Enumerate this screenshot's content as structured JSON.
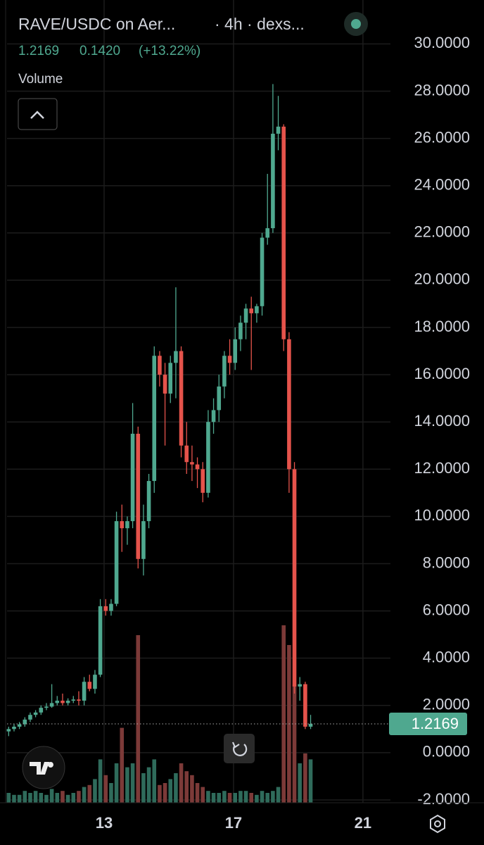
{
  "chart_data": {
    "type": "candlestick",
    "title": "RAVE/USDC on Aer...",
    "subtitle": "· 4h · dexs...",
    "last_price": 1.2169,
    "change": "0.1420",
    "change_pct": "(+13.22%)",
    "volume_label": "Volume",
    "up_color": "#4fa88f",
    "down_color": "#e5534b",
    "up_volume_color": "#2f6b5b",
    "down_volume_color": "#7c3a38",
    "grid": true,
    "xlim": [
      10,
      21.85
    ],
    "xticks": [
      13,
      17,
      21
    ],
    "ylim": [
      -2.12,
      31.86
    ],
    "yticks": [
      {
        "value": 30,
        "label": "30.0000"
      },
      {
        "value": 28,
        "label": "28.0000"
      },
      {
        "value": 26,
        "label": "26.0000"
      },
      {
        "value": 24,
        "label": "24.0000"
      },
      {
        "value": 22,
        "label": "22.0000"
      },
      {
        "value": 20,
        "label": "20.0000"
      },
      {
        "value": 18,
        "label": "18.0000"
      },
      {
        "value": 16,
        "label": "16.0000"
      },
      {
        "value": 14,
        "label": "14.0000"
      },
      {
        "value": 12,
        "label": "12.0000"
      },
      {
        "value": 10,
        "label": "10.0000"
      },
      {
        "value": 8,
        "label": "8.0000"
      },
      {
        "value": 6,
        "label": "6.0000"
      },
      {
        "value": 4,
        "label": "4.0000"
      },
      {
        "value": 2,
        "label": "2.0000"
      },
      {
        "value": 0,
        "label": "0.0000"
      },
      {
        "value": -2,
        "label": "-2.0000"
      }
    ],
    "vlim": [
      0,
      100
    ],
    "x": [
      10.05,
      10.217,
      10.383,
      10.55,
      10.717,
      10.883,
      11.05,
      11.217,
      11.383,
      11.55,
      11.717,
      11.883,
      12.05,
      12.217,
      12.383,
      12.55,
      12.717,
      12.883,
      13.05,
      13.217,
      13.383,
      13.55,
      13.717,
      13.883,
      14.05,
      14.217,
      14.383,
      14.55,
      14.717,
      14.883,
      15.05,
      15.217,
      15.383,
      15.55,
      15.717,
      15.883,
      16.05,
      16.217,
      16.383,
      16.55,
      16.717,
      16.883,
      17.05,
      17.217,
      17.383,
      17.55,
      17.717,
      17.883,
      18.05,
      18.217,
      18.383,
      18.55,
      18.717,
      18.883,
      19.05,
      19.217,
      19.383
    ],
    "open": [
      0.9,
      1.0,
      1.1,
      1.2,
      1.4,
      1.6,
      1.7,
      1.9,
      1.95,
      2.1,
      2.2,
      2.1,
      2.2,
      2.25,
      2.2,
      3.0,
      2.7,
      3.3,
      6.2,
      6.0,
      6.3,
      9.8,
      9.5,
      9.8,
      13.5,
      8.2,
      9.8,
      11.5,
      16.8,
      16.0,
      15.2,
      16.5,
      17.0,
      13.0,
      12.3,
      12.2,
      12.0,
      11.0,
      14.0,
      14.5,
      15.5,
      16.8,
      16.5,
      17.5,
      18.2,
      18.8,
      18.6,
      18.9,
      21.8,
      22.2,
      26.2,
      26.5,
      17.5,
      12.0,
      2.8,
      2.9,
      1.1
    ],
    "high": [
      1.1,
      1.2,
      1.3,
      1.5,
      1.7,
      1.8,
      2.0,
      2.1,
      2.9,
      2.4,
      2.5,
      2.3,
      2.4,
      2.6,
      3.2,
      3.3,
      3.5,
      6.5,
      6.5,
      6.5,
      10.2,
      10.5,
      10.0,
      14.8,
      13.8,
      10.5,
      11.8,
      17.2,
      17.0,
      16.5,
      16.8,
      19.7,
      17.2,
      14.0,
      13.0,
      12.5,
      12.3,
      14.5,
      15.0,
      16.0,
      17.0,
      17.5,
      18.0,
      18.5,
      19.0,
      19.3,
      19.0,
      22.0,
      24.5,
      28.3,
      27.8,
      26.6,
      17.8,
      12.3,
      3.2,
      3.0,
      1.6
    ],
    "low": [
      0.7,
      0.9,
      1.0,
      1.1,
      1.3,
      1.5,
      1.6,
      1.8,
      1.9,
      2.0,
      2.0,
      2.0,
      2.1,
      2.0,
      2.0,
      2.6,
      2.5,
      3.2,
      5.8,
      5.8,
      6.2,
      8.5,
      8.8,
      9.5,
      7.8,
      7.5,
      9.5,
      11.0,
      15.5,
      13.0,
      14.8,
      15.0,
      12.5,
      11.8,
      11.5,
      11.2,
      10.6,
      10.8,
      13.5,
      14.0,
      15.0,
      16.0,
      16.2,
      17.0,
      17.5,
      16.2,
      18.2,
      18.5,
      21.5,
      22.0,
      25.5,
      17.0,
      11.0,
      2.5,
      2.2,
      1.0,
      1.0
    ],
    "close": [
      1.0,
      1.1,
      1.2,
      1.4,
      1.6,
      1.7,
      1.9,
      1.95,
      2.1,
      2.2,
      2.1,
      2.2,
      2.25,
      2.2,
      3.0,
      2.7,
      3.3,
      6.2,
      6.0,
      6.3,
      9.8,
      9.5,
      9.8,
      13.5,
      8.2,
      9.8,
      11.5,
      16.8,
      16.0,
      15.2,
      16.5,
      17.0,
      13.0,
      12.3,
      12.2,
      12.0,
      11.0,
      14.0,
      14.5,
      15.5,
      16.8,
      16.5,
      17.5,
      18.2,
      18.8,
      18.6,
      18.9,
      21.8,
      22.2,
      26.2,
      26.5,
      17.5,
      12.0,
      2.8,
      2.9,
      1.1,
      1.2169
    ],
    "volume": [
      5,
      4,
      4,
      6,
      5,
      6,
      5,
      4,
      7,
      5,
      6,
      4,
      5,
      6,
      8,
      9,
      12,
      22,
      14,
      10,
      20,
      38,
      18,
      20,
      85,
      15,
      18,
      22,
      9,
      10,
      12,
      15,
      20,
      16,
      14,
      10,
      8,
      6,
      5,
      5,
      6,
      5,
      5,
      6,
      6,
      5,
      4,
      6,
      5,
      6,
      8,
      90,
      80,
      60,
      20,
      25,
      22
    ]
  }
}
